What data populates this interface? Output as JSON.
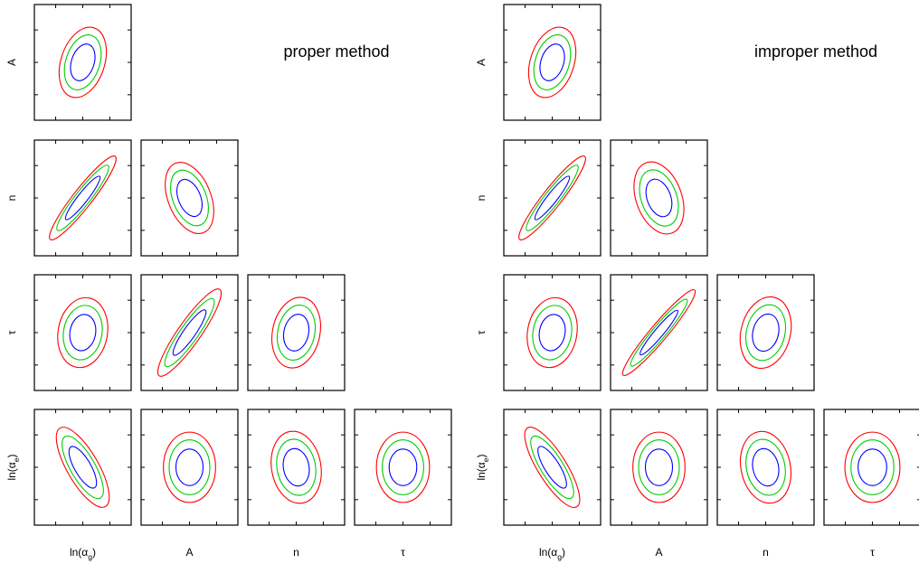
{
  "chart_data": {
    "type": "contour",
    "description": "Triangle plot of 2D confidence ellipses for parameter pairs",
    "colors": {
      "inner": "#0000ff",
      "middle": "#00cc00",
      "outer": "#ff0000"
    },
    "parameters": [
      "ln(α_g)",
      "A",
      "n",
      "τ",
      "ln(α_e)"
    ],
    "x_params": [
      "ln(α_g)",
      "A",
      "n",
      "τ"
    ],
    "y_params": [
      "A",
      "n",
      "τ",
      "ln(α_e)"
    ],
    "panels": [
      {
        "title": "proper method",
        "cells": [
          {
            "row": 0,
            "col": 0,
            "x": "ln(α_g)",
            "y": "A",
            "rx": 0.46,
            "ry": 0.64,
            "tilt": 18
          },
          {
            "row": 1,
            "col": 0,
            "x": "ln(α_g)",
            "y": "n",
            "rx": 0.2,
            "ry": 0.93,
            "tilt": 38
          },
          {
            "row": 1,
            "col": 1,
            "x": "A",
            "y": "n",
            "rx": 0.45,
            "ry": 0.66,
            "tilt": -22
          },
          {
            "row": 2,
            "col": 0,
            "x": "ln(α_g)",
            "y": "τ",
            "rx": 0.52,
            "ry": 0.62,
            "tilt": 10
          },
          {
            "row": 2,
            "col": 1,
            "x": "A",
            "y": "τ",
            "rx": 0.24,
            "ry": 0.93,
            "tilt": 35
          },
          {
            "row": 2,
            "col": 2,
            "x": "n",
            "y": "τ",
            "rx": 0.5,
            "ry": 0.63,
            "tilt": 12
          },
          {
            "row": 3,
            "col": 0,
            "x": "ln(α_g)",
            "y": "ln(α_e)",
            "rx": 0.33,
            "ry": 0.8,
            "tilt": -30
          },
          {
            "row": 3,
            "col": 1,
            "x": "A",
            "y": "ln(α_e)",
            "rx": 0.55,
            "ry": 0.62,
            "tilt": 0
          },
          {
            "row": 3,
            "col": 2,
            "x": "n",
            "y": "ln(α_e)",
            "rx": 0.52,
            "ry": 0.64,
            "tilt": -10
          },
          {
            "row": 3,
            "col": 3,
            "x": "τ",
            "y": "ln(α_e)",
            "rx": 0.56,
            "ry": 0.62,
            "tilt": 0
          }
        ]
      },
      {
        "title": "improper method",
        "cells": [
          {
            "row": 0,
            "col": 0,
            "x": "ln(α_g)",
            "y": "A",
            "rx": 0.46,
            "ry": 0.64,
            "tilt": 18
          },
          {
            "row": 1,
            "col": 0,
            "x": "ln(α_g)",
            "y": "n",
            "rx": 0.2,
            "ry": 0.93,
            "tilt": 38
          },
          {
            "row": 1,
            "col": 1,
            "x": "A",
            "y": "n",
            "rx": 0.48,
            "ry": 0.66,
            "tilt": -20
          },
          {
            "row": 2,
            "col": 0,
            "x": "ln(α_g)",
            "y": "τ",
            "rx": 0.52,
            "ry": 0.62,
            "tilt": 10
          },
          {
            "row": 2,
            "col": 1,
            "x": "A",
            "y": "τ",
            "rx": 0.18,
            "ry": 0.98,
            "tilt": 40
          },
          {
            "row": 2,
            "col": 2,
            "x": "n",
            "y": "τ",
            "rx": 0.52,
            "ry": 0.64,
            "tilt": 14
          },
          {
            "row": 3,
            "col": 0,
            "x": "ln(α_g)",
            "y": "ln(α_e)",
            "rx": 0.3,
            "ry": 0.82,
            "tilt": -32
          },
          {
            "row": 3,
            "col": 1,
            "x": "A",
            "y": "ln(α_e)",
            "rx": 0.55,
            "ry": 0.62,
            "tilt": 0
          },
          {
            "row": 3,
            "col": 2,
            "x": "n",
            "y": "ln(α_e)",
            "rx": 0.52,
            "ry": 0.64,
            "tilt": -12
          },
          {
            "row": 3,
            "col": 3,
            "x": "τ",
            "y": "ln(α_e)",
            "rx": 0.58,
            "ry": 0.62,
            "tilt": 0
          }
        ]
      }
    ],
    "contour_scales": [
      1.0,
      0.78,
      0.52
    ]
  }
}
